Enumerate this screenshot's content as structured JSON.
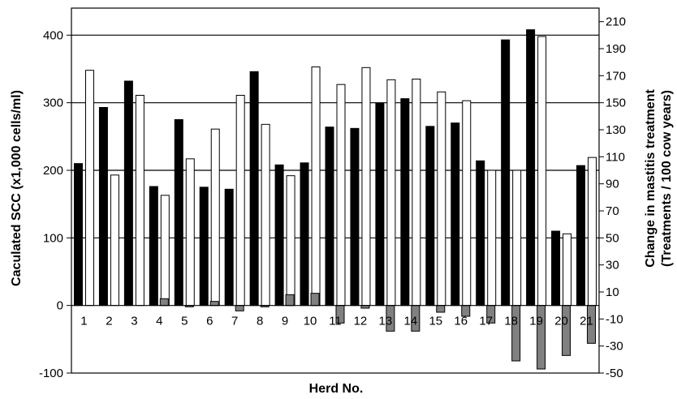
{
  "chart_data": {
    "type": "bar",
    "xlabel": "Herd No.",
    "ylabel": "Caculated SCC (x1,000 cells/ml)",
    "y2label_line1": "Change in mastitis treatment",
    "y2label_line2": "(Treatments / 100 cow years)",
    "categories": [
      "1",
      "2",
      "3",
      "4",
      "5",
      "6",
      "7",
      "8",
      "9",
      "10",
      "11",
      "12",
      "13",
      "14",
      "15",
      "16",
      "17",
      "18",
      "19",
      "20",
      "21"
    ],
    "ylim": [
      -100,
      440
    ],
    "yticks": [
      -100,
      0,
      100,
      200,
      300,
      400
    ],
    "y2lim": [
      -50,
      220
    ],
    "y2ticks": [
      -50,
      -30,
      -10,
      10,
      30,
      50,
      70,
      90,
      110,
      130,
      150,
      170,
      190,
      210
    ],
    "gridlines": [
      100,
      200,
      300,
      400
    ],
    "series": [
      {
        "color": "#000000",
        "axis": "left",
        "values": [
          210,
          293,
          332,
          176,
          275,
          175,
          172,
          346,
          208,
          211,
          264,
          262,
          299,
          306,
          265,
          270,
          214,
          393,
          408,
          110,
          207
        ]
      },
      {
        "color": "#ffffff",
        "axis": "left",
        "values": [
          348,
          193,
          311,
          163,
          217,
          261,
          311,
          268,
          192,
          353,
          327,
          352,
          334,
          335,
          316,
          303,
          200,
          200,
          398,
          106,
          219
        ]
      },
      {
        "color": "#808080",
        "axis": "right",
        "values": [
          0,
          0,
          0,
          5,
          -1,
          3,
          -4,
          -1,
          8,
          9,
          -13,
          -2,
          -19,
          -19,
          -5,
          -8,
          -13,
          -41,
          -47,
          -37,
          -28
        ]
      }
    ]
  }
}
